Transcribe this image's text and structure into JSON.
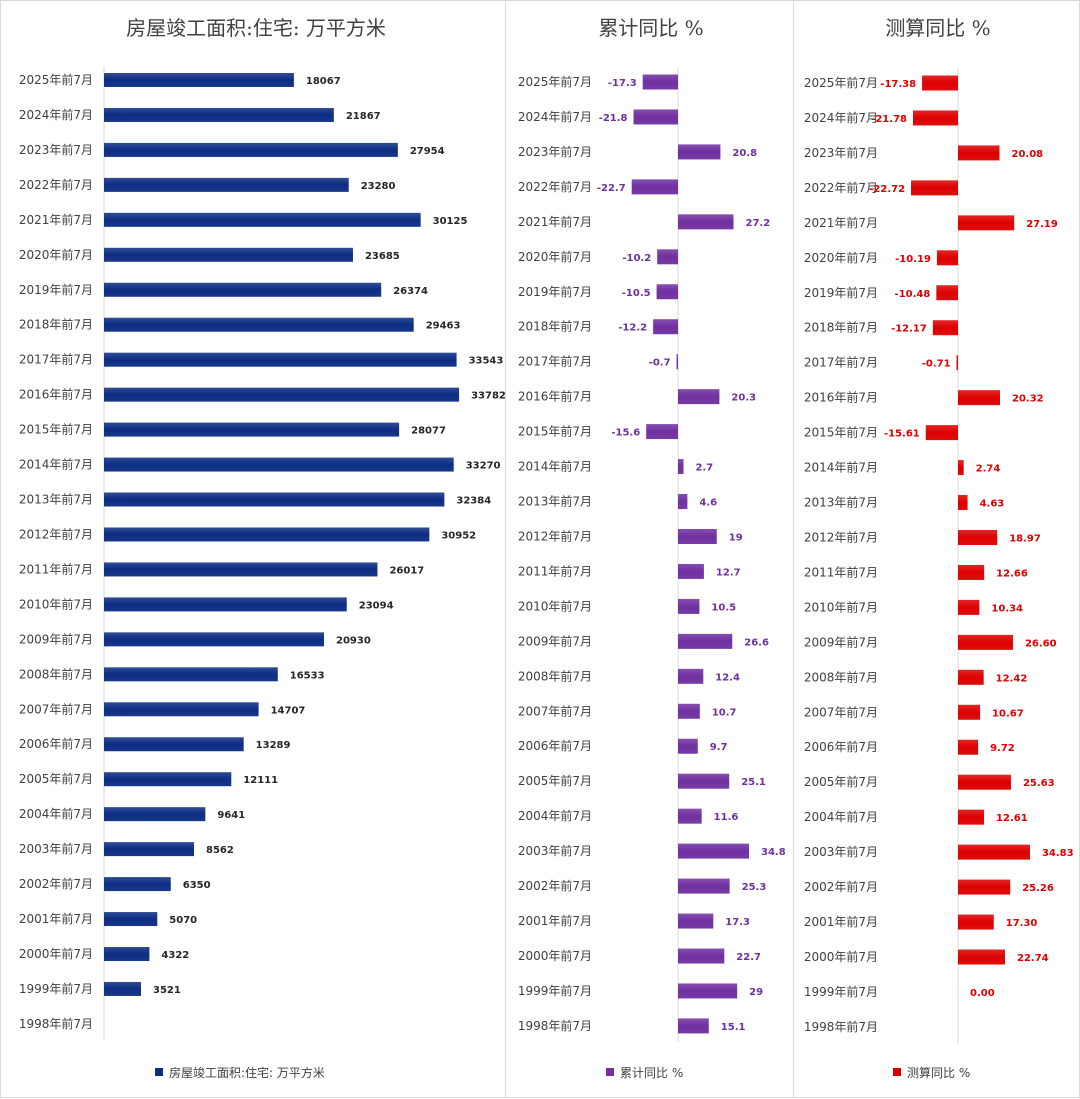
{
  "colors": {
    "panel1": "#0c2d83",
    "panel2": "#7030a0",
    "panel3": "#dd0000"
  },
  "chart_data": [
    {
      "type": "bar",
      "orientation": "horizontal",
      "title": "房屋竣工面积:住宅: 万平方米",
      "categories": [
        "2025年前7月",
        "2024年前7月",
        "2023年前7月",
        "2022年前7月",
        "2021年前7月",
        "2020年前7月",
        "2019年前7月",
        "2018年前7月",
        "2017年前7月",
        "2016年前7月",
        "2015年前7月",
        "2014年前7月",
        "2013年前7月",
        "2012年前7月",
        "2011年前7月",
        "2010年前7月",
        "2009年前7月",
        "2008年前7月",
        "2007年前7月",
        "2006年前7月",
        "2005年前7月",
        "2004年前7月",
        "2003年前7月",
        "2002年前7月",
        "2001年前7月",
        "2000年前7月",
        "1999年前7月",
        "1998年前7月"
      ],
      "series": [
        {
          "name": "房屋竣工面积:住宅: 万平方米",
          "values": [
            18067,
            21867,
            27954,
            23280,
            30125,
            23685,
            26374,
            29463,
            33543,
            33782,
            28077,
            33270,
            32384,
            30952,
            26017,
            23094,
            20930,
            16533,
            14707,
            13289,
            12111,
            9641,
            8562,
            6350,
            5070,
            4322,
            3521,
            null
          ],
          "labels": [
            "18067",
            "21867",
            "27954",
            "23280",
            "30125",
            "23685",
            "26374",
            "29463",
            "33543",
            "33782",
            "28077",
            "33270",
            "32384",
            "30952",
            "26017",
            "23094",
            "20930",
            "16533",
            "14707",
            "13289",
            "12111",
            "9641",
            "8562",
            "6350",
            "5070",
            "4322",
            "3521",
            ""
          ]
        }
      ],
      "xlim": [
        0,
        45000
      ],
      "legend_position": "bottom"
    },
    {
      "type": "bar",
      "orientation": "horizontal",
      "title": "累计同比 %",
      "categories": [
        "2025年前7月",
        "2024年前7月",
        "2023年前7月",
        "2022年前7月",
        "2021年前7月",
        "2020年前7月",
        "2019年前7月",
        "2018年前7月",
        "2017年前7月",
        "2016年前7月",
        "2015年前7月",
        "2014年前7月",
        "2013年前7月",
        "2012年前7月",
        "2011年前7月",
        "2010年前7月",
        "2009年前7月",
        "2008年前7月",
        "2007年前7月",
        "2006年前7月",
        "2005年前7月",
        "2004年前7月",
        "2003年前7月",
        "2002年前7月",
        "2001年前7月",
        "2000年前7月",
        "1999年前7月",
        "1998年前7月"
      ],
      "series": [
        {
          "name": "累计同比 %",
          "values": [
            -17.3,
            -21.8,
            20.8,
            -22.7,
            27.2,
            -10.2,
            -10.5,
            -12.2,
            -0.7,
            20.3,
            -15.6,
            2.7,
            4.6,
            19,
            12.7,
            10.5,
            26.6,
            12.4,
            10.7,
            9.7,
            25.1,
            11.6,
            34.8,
            25.3,
            17.3,
            22.7,
            29,
            15.1
          ],
          "labels": [
            "-17.3",
            "-21.8",
            "20.8",
            "-22.7",
            "27.2",
            "-10.2",
            "-10.5",
            "-12.2",
            "-0.7",
            "20.3",
            "-15.6",
            "2.7",
            "4.6",
            "19",
            "12.7",
            "10.5",
            "26.6",
            "12.4",
            "10.7",
            "9.7",
            "25.1",
            "11.6",
            "34.8",
            "25.3",
            "17.3",
            "22.7",
            "29",
            "15.1"
          ]
        }
      ],
      "xlim": [
        -40,
        60
      ],
      "legend_position": "bottom"
    },
    {
      "type": "bar",
      "orientation": "horizontal",
      "title": "测算同比 %",
      "categories": [
        "2025年前7月",
        "2024年前7月",
        "2023年前7月",
        "2022年前7月",
        "2021年前7月",
        "2020年前7月",
        "2019年前7月",
        "2018年前7月",
        "2017年前7月",
        "2016年前7月",
        "2015年前7月",
        "2014年前7月",
        "2013年前7月",
        "2012年前7月",
        "2011年前7月",
        "2010年前7月",
        "2009年前7月",
        "2008年前7月",
        "2007年前7月",
        "2006年前7月",
        "2005年前7月",
        "2004年前7月",
        "2003年前7月",
        "2002年前7月",
        "2001年前7月",
        "2000年前7月",
        "1999年前7月",
        "1998年前7月"
      ],
      "series": [
        {
          "name": "测算同比 %",
          "values": [
            -17.38,
            -21.78,
            20.08,
            -22.72,
            27.19,
            -10.19,
            -10.48,
            -12.17,
            -0.71,
            20.32,
            -15.61,
            2.74,
            4.63,
            18.97,
            12.66,
            10.34,
            26.6,
            12.42,
            10.67,
            9.72,
            25.63,
            12.61,
            34.83,
            25.26,
            17.3,
            22.74,
            0,
            null
          ],
          "labels": [
            "-17.38",
            "-21.78",
            "20.08",
            "-22.72",
            "27.19",
            "-10.19",
            "-10.48",
            "-12.17",
            "-0.71",
            "20.32",
            "-15.61",
            "2.74",
            "4.63",
            "18.97",
            "12.66",
            "10.34",
            "26.60",
            "12.42",
            "10.67",
            "9.72",
            "25.63",
            "12.61",
            "34.83",
            "25.26",
            "17.30",
            "22.74",
            "0.00",
            ""
          ]
        }
      ],
      "xlim": [
        -45,
        75
      ],
      "legend_position": "bottom"
    }
  ]
}
